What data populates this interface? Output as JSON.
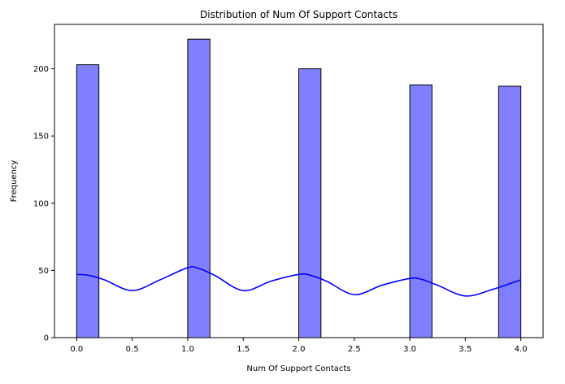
{
  "chart_data": {
    "type": "bar",
    "subtype": "histogram-with-kde",
    "title": "Distribution of Num Of Support Contacts",
    "xlabel": "Num Of Support Contacts",
    "ylabel": "Frequency",
    "xlim": [
      -0.2,
      4.2
    ],
    "ylim": [
      0,
      233
    ],
    "xticks": [
      0.0,
      0.5,
      1.0,
      1.5,
      2.0,
      2.5,
      3.0,
      3.5,
      4.0
    ],
    "xtick_labels": [
      "0.0",
      "0.5",
      "1.0",
      "1.5",
      "2.0",
      "2.5",
      "3.0",
      "3.5",
      "4.0"
    ],
    "yticks": [
      0,
      50,
      100,
      150,
      200
    ],
    "ytick_labels": [
      "0",
      "50",
      "100",
      "150",
      "200"
    ],
    "bins": [
      {
        "x0": 0.0,
        "x1": 0.2,
        "value": 203
      },
      {
        "x0": 1.0,
        "x1": 1.2,
        "value": 222
      },
      {
        "x0": 2.0,
        "x1": 2.2,
        "value": 200
      },
      {
        "x0": 3.0,
        "x1": 3.2,
        "value": 188
      },
      {
        "x0": 3.8,
        "x1": 4.0,
        "value": 187
      }
    ],
    "kde": {
      "x": [
        0.0,
        0.1,
        0.25,
        0.5,
        0.75,
        1.0,
        1.1,
        1.25,
        1.5,
        1.75,
        2.0,
        2.1,
        2.25,
        2.5,
        2.75,
        3.0,
        3.1,
        3.25,
        3.5,
        3.75,
        4.0
      ],
      "y": [
        47,
        46.5,
        43,
        35,
        43,
        52,
        51.5,
        46,
        35,
        42,
        47,
        46.5,
        42,
        32,
        39,
        44,
        43.5,
        39,
        31,
        36,
        43
      ]
    },
    "grid": false,
    "legend": "none",
    "colors": {
      "bar_fill": "#7f7fff",
      "bar_edge": "#000000",
      "kde_line": "#0000ff",
      "axes": "#000000"
    }
  }
}
